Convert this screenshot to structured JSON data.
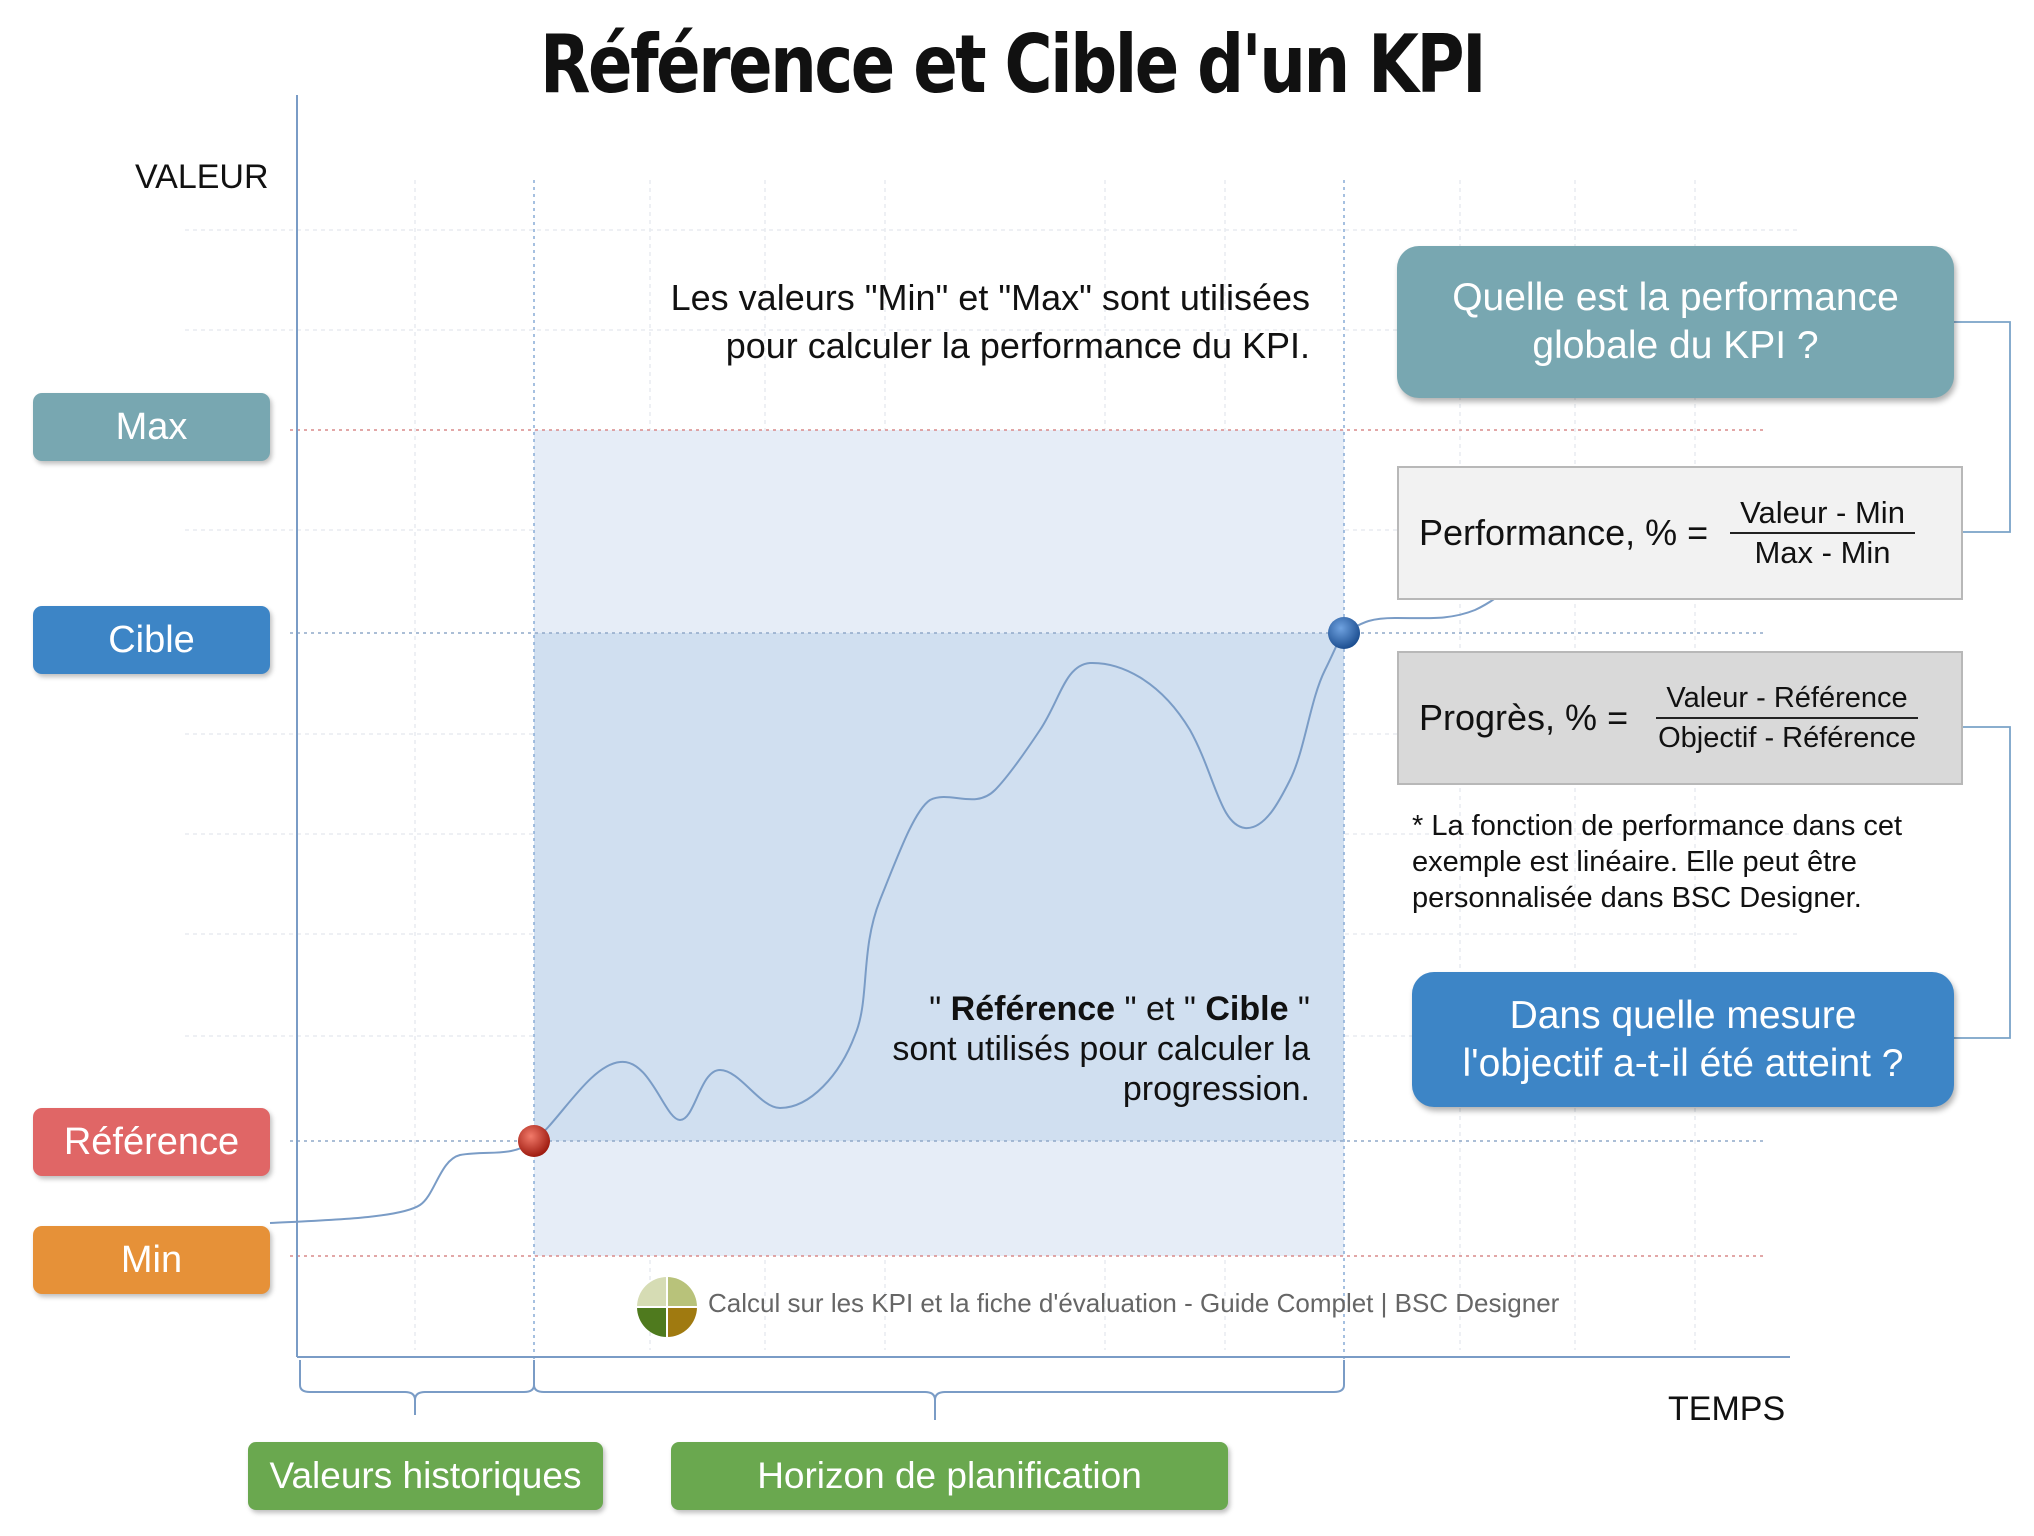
{
  "title": "Référence et Cible d'un KPI",
  "axes": {
    "y_label": "VALEUR",
    "x_label": "TEMPS"
  },
  "levels": [
    {
      "id": "max",
      "label": "Max",
      "color": "#78a7b1"
    },
    {
      "id": "cible",
      "label": "Cible",
      "color": "#3d85c6"
    },
    {
      "id": "reference",
      "label": "Référence",
      "color": "#e06666"
    },
    {
      "id": "min",
      "label": "Min",
      "color": "#e69138"
    }
  ],
  "periods": {
    "historical": "Valeurs historiques",
    "planning": "Horizon de planification"
  },
  "notes": {
    "minmax_line1": "Les valeurs \"Min\" et \"Max\" sont utilisées",
    "minmax_line2": "pour calculer la performance du KPI.",
    "ref_prefix": "\" ",
    "ref_bold1": "Référence",
    "ref_mid": " \" et \" ",
    "ref_bold2": "Cible",
    "ref_suffix": " \"",
    "ref_line2": "sont utilisés pour calculer la",
    "ref_line3": "progression."
  },
  "questions": {
    "performance_line1": "Quelle est la performance",
    "performance_line2": "globale du KPI ?",
    "progress_line1": "Dans quelle mesure",
    "progress_line2": "l'objectif a-t-il été atteint ?",
    "performance_color": "#78a7b1",
    "progress_color": "#3d85c6"
  },
  "formulas": {
    "performance": {
      "lhs": "Performance, % =",
      "numerator": "Valeur - Min",
      "denominator": "Max - Min"
    },
    "progress": {
      "lhs": "Progrès, % =",
      "numerator": "Valeur - Référence",
      "denominator": "Objectif - Référence"
    }
  },
  "footnote": "* La fonction de performance dans cet exemple est linéaire.  Elle peut être personnalisée dans BSC Designer.",
  "credit": "Calcul sur les KPI et la fiche d'évaluation - Guide Complet | BSC Designer",
  "logo_colors": [
    "#d6dcb4",
    "#b8c27a",
    "#4f7a1e",
    "#a07a10"
  ]
}
